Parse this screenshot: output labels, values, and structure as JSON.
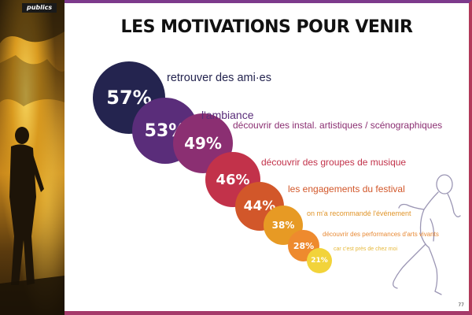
{
  "header": {
    "section_tag": "publics",
    "title": "LES MOTIVATIONS POUR VENIR"
  },
  "chart_data": {
    "type": "bubble",
    "title": "LES MOTIVATIONS POUR VENIR",
    "items": [
      {
        "percent": "57%",
        "value": 57,
        "label": "retrouver des ami·es",
        "color": "#24244f"
      },
      {
        "percent": "53%",
        "value": 53,
        "label": "l'ambiance",
        "color": "#5a2d7a"
      },
      {
        "percent": "49%",
        "value": 49,
        "label": "découvrir des instal. artistiques / scénographiques",
        "color": "#8b2f72"
      },
      {
        "percent": "46%",
        "value": 46,
        "label": "découvrir des groupes de musique",
        "color": "#c2324a"
      },
      {
        "percent": "44%",
        "value": 44,
        "label": "les engagements du festival",
        "color": "#d2572a"
      },
      {
        "percent": "38%",
        "value": 38,
        "label": "on m'a recommandé l'événement",
        "color": "#e79a24"
      },
      {
        "percent": "28%",
        "value": 28,
        "label": "découvrir des performances d'arts vivants",
        "color": "#ee8a2e"
      },
      {
        "percent": "21%",
        "value": 21,
        "label": "car c'est près de chez moi",
        "color": "#f2d33a"
      }
    ]
  },
  "footer": {
    "page_number": "77"
  }
}
